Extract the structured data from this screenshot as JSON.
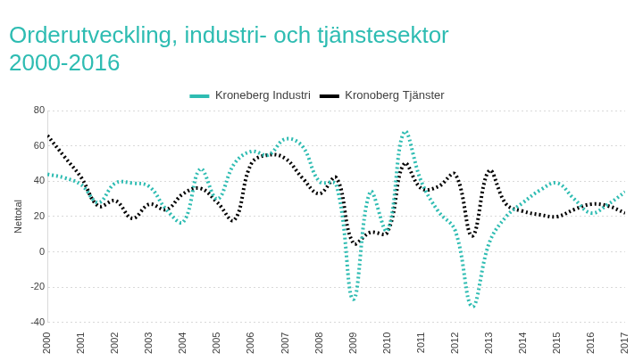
{
  "chart_data": {
    "type": "line",
    "title": [
      "Orderutveckling, industri- och tjänstesektor",
      "2000-2016"
    ],
    "y_label": "Nettotal",
    "categories": [
      "2000",
      null,
      "2001",
      null,
      "2002",
      null,
      "2003",
      null,
      "2004",
      null,
      "2005",
      null,
      "2006",
      null,
      "2007",
      null,
      "2008",
      null,
      "2009",
      null,
      "2010",
      null,
      "2011",
      null,
      "2012",
      null,
      "2013",
      null,
      "2014",
      null,
      "2015",
      null,
      "2016",
      null,
      "2017"
    ],
    "series": [
      {
        "name": "Kroneberg Industri",
        "color": "#2ebcb2",
        "line_style": "dotted",
        "values": [
          44,
          42,
          38,
          28,
          39,
          39,
          37,
          24,
          17,
          47,
          30,
          50,
          57,
          55,
          64,
          60,
          40,
          38,
          -27,
          34,
          12,
          68,
          40,
          23,
          12,
          -31,
          5,
          20,
          28,
          35,
          39,
          30,
          22,
          27,
          34
        ]
      },
      {
        "name": "Kronoberg Tjänster",
        "color": "#000000",
        "line_style": "dotted",
        "values": [
          66,
          54,
          42,
          26,
          29,
          19,
          27,
          24,
          33,
          36,
          28,
          18,
          50,
          55,
          53,
          42,
          33,
          42,
          5,
          11,
          11,
          50,
          36,
          37,
          44,
          9,
          46,
          27,
          23,
          21,
          20,
          24,
          27,
          26,
          22
        ]
      }
    ],
    "ylim": [
      -40,
      80
    ],
    "yticks": [
      -40,
      -20,
      0,
      20,
      40,
      60,
      80
    ],
    "grid": true,
    "legend": "top"
  }
}
